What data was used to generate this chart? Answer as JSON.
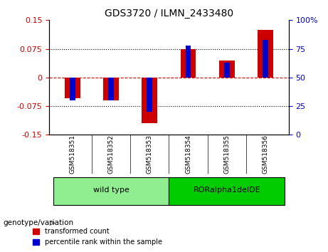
{
  "title": "GDS3720 / ILMN_2433480",
  "samples": [
    "GSM518351",
    "GSM518352",
    "GSM518353",
    "GSM518354",
    "GSM518355",
    "GSM518356"
  ],
  "red_values": [
    -0.055,
    -0.06,
    -0.12,
    0.075,
    0.045,
    0.125
  ],
  "blue_percentiles": [
    30,
    30,
    20,
    78,
    63,
    83
  ],
  "ylim": [
    -0.15,
    0.15
  ],
  "yticks_left": [
    -0.15,
    -0.075,
    0,
    0.075,
    0.15
  ],
  "ytick_labels_left": [
    "-0.15",
    "-0.075",
    "0",
    "0.075",
    "0.15"
  ],
  "yticks_right": [
    0,
    25,
    50,
    75,
    100
  ],
  "ytick_labels_right": [
    "0",
    "25",
    "50",
    "75",
    "100%"
  ],
  "groups": [
    {
      "label": "wild type",
      "indices": [
        0,
        1,
        2
      ],
      "color": "#90EE90"
    },
    {
      "label": "RORalpha1delDE",
      "indices": [
        3,
        4,
        5
      ],
      "color": "#00CC00"
    }
  ],
  "group_label": "genotype/variation",
  "legend_red": "transformed count",
  "legend_blue": "percentile rank within the sample",
  "bar_width": 0.4,
  "red_color": "#CC0000",
  "blue_color": "#0000CC",
  "zero_line_color": "#CC0000",
  "grid_color": "#000000",
  "background_color": "#FFFFFF",
  "plot_bg": "#FFFFFF",
  "axis_label_color_left": "#CC0000",
  "axis_label_color_right": "#0000CC"
}
